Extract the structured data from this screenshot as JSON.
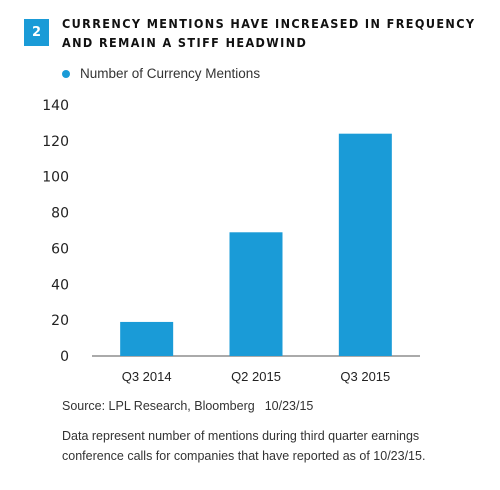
{
  "figure": {
    "number": "2",
    "title_line1": "CURRENCY MENTIONS HAVE INCREASED IN FREQUENCY",
    "title_line2": "AND REMAIN A STIFF HEADWIND"
  },
  "source": {
    "text": "Source: LPL Research, Bloomberg",
    "date": "10/23/15"
  },
  "note": {
    "line1": "Data represent number of mentions during third quarter earnings",
    "line2": "conference calls for companies that have reported as of 10/23/15."
  },
  "colors": {
    "accent": "#1a9bd7",
    "bar": "#1a9bd7"
  },
  "chart_data": {
    "type": "bar",
    "categories": [
      "Q3 2014",
      "Q2 2015",
      "Q3 2015"
    ],
    "series": [
      {
        "name": "Number of Currency Mentions",
        "values": [
          19,
          69,
          124
        ]
      }
    ],
    "ylim": [
      0,
      140
    ],
    "yticks": [
      0,
      20,
      40,
      60,
      80,
      100,
      120,
      140
    ],
    "grid": false,
    "legend": "top-left"
  }
}
